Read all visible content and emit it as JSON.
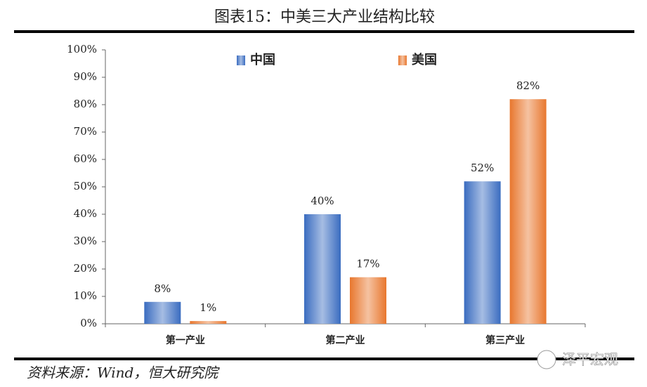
{
  "chart_data": {
    "type": "bar",
    "title": "图表15：中美三大产业结构比较",
    "source": "资料来源：Wind，恒大研究院",
    "watermark": "泽平宏观",
    "categories": [
      "第一产业",
      "第二产业",
      "第三产业"
    ],
    "series": [
      {
        "name": "中国",
        "color": "#3a6cc0",
        "values": [
          8,
          40,
          52
        ],
        "value_labels": [
          "8%",
          "40%",
          "52%"
        ]
      },
      {
        "name": "美国",
        "color": "#e8772e",
        "values": [
          1,
          17,
          82
        ],
        "value_labels": [
          "1%",
          "17%",
          "82%"
        ]
      }
    ],
    "ylim": [
      0,
      100
    ],
    "yticks": [
      {
        "value": 0,
        "label": "0%"
      },
      {
        "value": 10,
        "label": "10%"
      },
      {
        "value": 20,
        "label": "20%"
      },
      {
        "value": 30,
        "label": "30%"
      },
      {
        "value": 40,
        "label": "40%"
      },
      {
        "value": 50,
        "label": "50%"
      },
      {
        "value": 60,
        "label": "60%"
      },
      {
        "value": 70,
        "label": "70%"
      },
      {
        "value": 80,
        "label": "80%"
      },
      {
        "value": 90,
        "label": "90%"
      },
      {
        "value": 100,
        "label": "100%"
      }
    ],
    "legend": "top",
    "grid": false
  }
}
